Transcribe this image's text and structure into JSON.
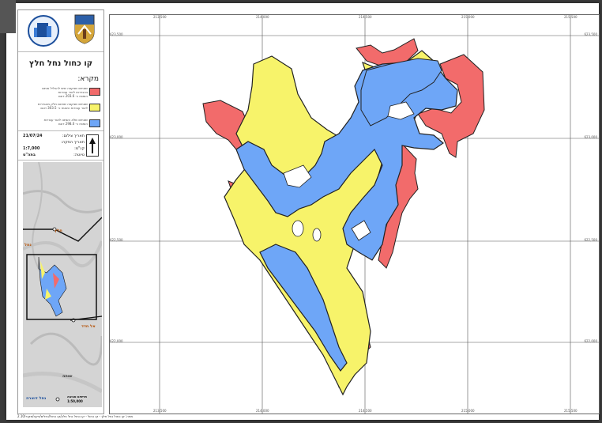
{
  "title": "קו כחול נחל חלץ",
  "legend": {
    "heading": "מקרא:",
    "items": [
      {
        "color": "#f26b6b",
        "text_1": "שטחים שבקצה שיש להכליל אותם",
        "text_2": "בהגדרות לאור עבודות",
        "text_3": "השטח כ- 203.6 דונם"
      },
      {
        "color": "#f7f36a",
        "text_1": "שטחים שבקצה שאינם חלק מהגדרות",
        "text_2": "לאור עבודות השטח כ- 303.5 דונם",
        "text_3": ""
      },
      {
        "color": "#6ea6f7",
        "text_1": "שטחים שלא השתנו לאור עבודות",
        "text_2": "השטח כ- 298.0 דונם",
        "text_3": ""
      }
    ]
  },
  "info": {
    "date_label": "תאריך צילום:",
    "date_value": "21/07/24",
    "update_label": "תאריך הפקה:",
    "scale_label": "קנ\"מ:",
    "scale_value": "1:7,000",
    "draft_label": "טיוטה:",
    "draft_value": "בתה\"ס"
  },
  "inset": {
    "place_1": "חלץ",
    "place_2": "נחל",
    "place_3": "אל חדד",
    "place_4": "שוחה",
    "place_5": "נחל דוארה",
    "scale_label": "תרשים סביבה",
    "scale_value": "1:50,000"
  },
  "coords": {
    "top": [
      "213,500",
      "214,000",
      "214,500",
      "215,000",
      "215,500"
    ],
    "bottom": [
      "213,500",
      "214,000",
      "214,500",
      "215,000",
      "215,500"
    ],
    "left": [
      "623,500",
      "623,000",
      "622,500",
      "622,000"
    ],
    "right": [
      "623,500",
      "623,000",
      "622,500",
      "622,000"
    ]
  },
  "footer": "מפה: קו כחול נחל חלץ - קו כחול - קו כחול נחל חלץ/קו כחול/נחלים/ניקוז/מקור/2.10"
}
